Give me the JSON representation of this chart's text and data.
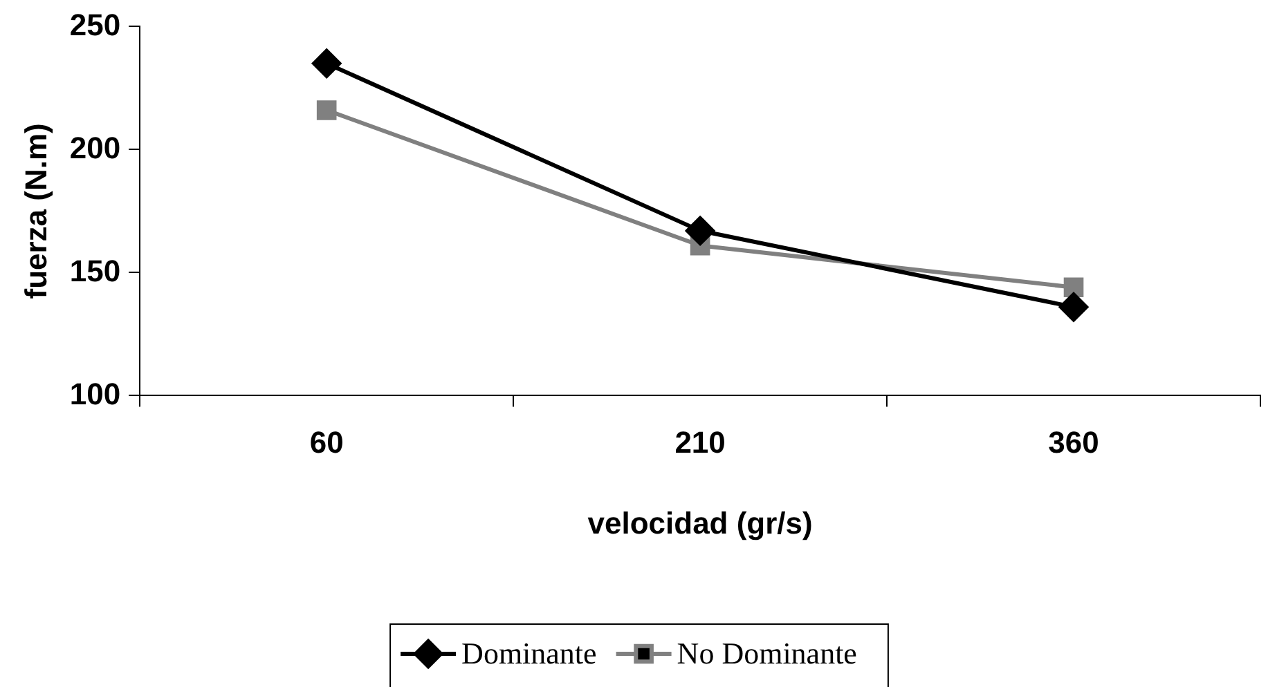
{
  "chart_data": {
    "type": "line",
    "xlabel": "velocidad (gr/s)",
    "ylabel": "fuerza (N.m)",
    "categories": [
      "60",
      "210",
      "360"
    ],
    "series": [
      {
        "name": "Dominante",
        "color": "#000000",
        "marker": "diamond",
        "values": [
          235,
          167,
          136
        ]
      },
      {
        "name": "No Dominante",
        "color": "#808080",
        "marker": "square",
        "values": [
          216,
          161,
          144
        ]
      }
    ],
    "ylim": [
      100,
      250
    ],
    "yticks": [
      100,
      150,
      200,
      250
    ],
    "grid": false,
    "legend": "bottom",
    "line_style": "solid"
  }
}
